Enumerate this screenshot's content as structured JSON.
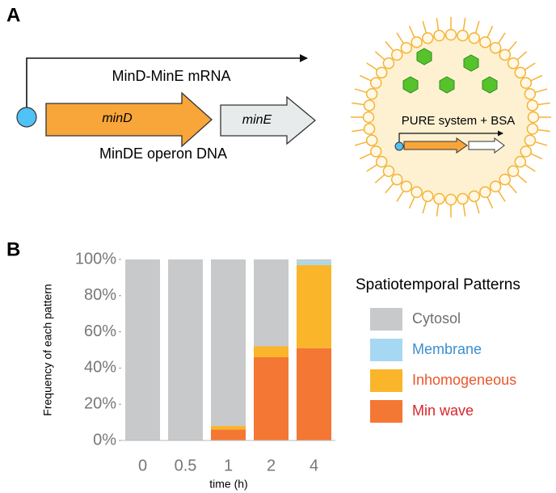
{
  "diagram": {
    "panel_label": "A",
    "mrna_label": "MinD-MinE mRNA",
    "gene1": "minD",
    "gene2": "minE",
    "operon_label": "MinDE operon DNA",
    "vesicle_label": "PURE system + BSA"
  },
  "chart_data": {
    "type": "bar",
    "stacked": true,
    "panel_label": "B",
    "ylabel": "Frequency of each pattern",
    "xlabel": "time (h)",
    "categories": [
      "0",
      "0.5",
      "1",
      "2",
      "4"
    ],
    "ylim": [
      0,
      100
    ],
    "yticks": [
      {
        "value": 0,
        "label": "0%"
      },
      {
        "value": 20,
        "label": "20%"
      },
      {
        "value": 40,
        "label": "40%"
      },
      {
        "value": 60,
        "label": "60%"
      },
      {
        "value": 80,
        "label": "80%"
      },
      {
        "value": 100,
        "label": "100%"
      }
    ],
    "legend_title": "Spatiotemporal Patterns",
    "legend_position": "right",
    "series": [
      {
        "name": "Cytosol",
        "color": "#c7c9ca",
        "label_color": "#6d6e70",
        "values": [
          100,
          100,
          92,
          48,
          1
        ]
      },
      {
        "name": "Membrane",
        "color": "#a6d8f3",
        "label_color": "#3a8fd0",
        "values": [
          0,
          0,
          0,
          0,
          2
        ]
      },
      {
        "name": "Inhomogeneous",
        "color": "#fbb52b",
        "label_color": "#e8572a",
        "values": [
          0,
          0,
          2,
          6,
          46
        ]
      },
      {
        "name": "Min wave",
        "color": "#f47734",
        "label_color": "#d7262b",
        "values": [
          0,
          0,
          6,
          46,
          51
        ]
      }
    ]
  }
}
